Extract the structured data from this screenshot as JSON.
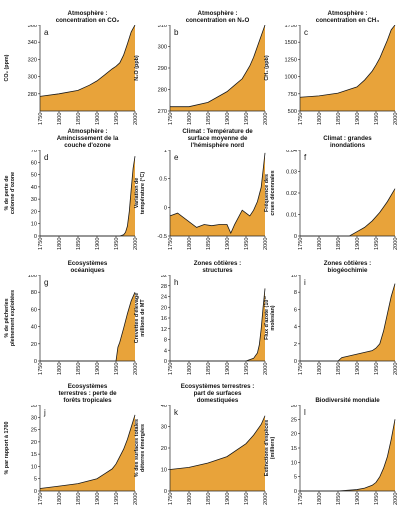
{
  "colors": {
    "fill": "#e8a33a",
    "stroke": "#1a1a1a",
    "axis": "#222222"
  },
  "chart_data": [
    {
      "type": "area",
      "letter": "a",
      "title": "Atmosphère :\nconcentration en CO₂",
      "ylabel": "CO₂ (ppm)",
      "ylim": [
        260,
        360
      ],
      "yticks": [
        280,
        300,
        320,
        340,
        360
      ],
      "xticks": [
        1750,
        1800,
        1850,
        1900,
        1950,
        2000
      ],
      "x": [
        1750,
        1800,
        1850,
        1880,
        1900,
        1920,
        1940,
        1950,
        1960,
        1970,
        1980,
        1990,
        2000
      ],
      "y": [
        277,
        280,
        284,
        290,
        295,
        302,
        309,
        312,
        316,
        325,
        338,
        352,
        368
      ]
    },
    {
      "type": "area",
      "letter": "b",
      "title": "Atmosphère :\nconcentration en N₂O",
      "ylabel": "N₂O (ppb)",
      "ylim": [
        270,
        310
      ],
      "yticks": [
        270,
        280,
        290,
        300,
        310
      ],
      "xticks": [
        1750,
        1800,
        1850,
        1900,
        1950,
        2000
      ],
      "x": [
        1750,
        1800,
        1850,
        1900,
        1920,
        1940,
        1950,
        1960,
        1970,
        1980,
        1990,
        2000
      ],
      "y": [
        272,
        272,
        274,
        279,
        282,
        285,
        288,
        291,
        295,
        300,
        305,
        312
      ]
    },
    {
      "type": "area",
      "letter": "c",
      "title": "Atmosphère :\nconcentration en CH₄",
      "ylabel": "CH₄ (ppb)",
      "ylim": [
        500,
        1750
      ],
      "yticks": [
        500,
        750,
        1000,
        1250,
        1500,
        1750
      ],
      "xticks": [
        1750,
        1800,
        1850,
        1900,
        1950,
        2000
      ],
      "x": [
        1750,
        1800,
        1850,
        1900,
        1920,
        1940,
        1950,
        1960,
        1970,
        1980,
        1990,
        2000
      ],
      "y": [
        700,
        720,
        760,
        850,
        950,
        1080,
        1170,
        1270,
        1400,
        1530,
        1680,
        1760
      ]
    },
    {
      "type": "area",
      "letter": "d",
      "title": "Atmosphère :\nAmincissement de la\ncouche d'ozone",
      "ylabel": "% de perte de\ncolonne d'ozone",
      "ylim": [
        0,
        70
      ],
      "yticks": [
        0,
        10,
        20,
        30,
        40,
        50,
        60,
        70
      ],
      "xticks": [
        1750,
        1800,
        1850,
        1900,
        1950,
        2000
      ],
      "x": [
        1750,
        1950,
        1960,
        1970,
        1975,
        1980,
        1985,
        1990,
        1995,
        2000
      ],
      "y": [
        0,
        0,
        0,
        1,
        3,
        8,
        20,
        38,
        55,
        65
      ]
    },
    {
      "type": "area",
      "letter": "e",
      "title": "Climat : Température de\nsurface moyenne de\nl'hémisphère nord",
      "ylabel": "Variation de\ntempérature (°C)",
      "ylim": [
        -0.5,
        1.0
      ],
      "yticks": [
        -0.5,
        0,
        0.5,
        1.0
      ],
      "xticks": [
        1750,
        1800,
        1850,
        1900,
        1950,
        2000
      ],
      "baseline": -0.5,
      "x": [
        1750,
        1770,
        1790,
        1810,
        1820,
        1840,
        1860,
        1880,
        1900,
        1910,
        1920,
        1940,
        1950,
        1960,
        1970,
        1980,
        1990,
        2000
      ],
      "y": [
        -0.15,
        -0.1,
        -0.2,
        -0.3,
        -0.35,
        -0.3,
        -0.32,
        -0.3,
        -0.3,
        -0.45,
        -0.3,
        -0.05,
        -0.1,
        -0.15,
        -0.05,
        0.1,
        0.35,
        0.95
      ]
    },
    {
      "type": "area",
      "letter": "f",
      "title": "Climat : grandes\ninondations",
      "ylabel": "Fréquence des\ncrues décennales",
      "ylim": [
        0,
        0.04
      ],
      "yticks": [
        0,
        0.01,
        0.02,
        0.03,
        0.04
      ],
      "xticks": [
        1750,
        1800,
        1850,
        1900,
        1950,
        2000
      ],
      "x": [
        1750,
        1880,
        1900,
        1920,
        1940,
        1960,
        1980,
        2000
      ],
      "y": [
        0,
        0,
        0.002,
        0.004,
        0.007,
        0.011,
        0.016,
        0.022
      ]
    },
    {
      "type": "area",
      "letter": "g",
      "title": "Ecosystèmes\nocéaniques",
      "ylabel": "% de pêcheries\npleinement exploitées",
      "ylim": [
        0,
        100
      ],
      "yticks": [
        0,
        20,
        40,
        60,
        80,
        100
      ],
      "xticks": [
        1750,
        1800,
        1850,
        1900,
        1950,
        2000
      ],
      "x": [
        1750,
        1950,
        1955,
        1960,
        1970,
        1980,
        1990,
        2000
      ],
      "y": [
        0,
        0,
        16,
        22,
        38,
        55,
        70,
        80
      ]
    },
    {
      "type": "area",
      "letter": "h",
      "title": "Zones côtières :\nstructures",
      "ylabel": "Crevettes d'élevage\nmillions de MT",
      "ylim": [
        0,
        32
      ],
      "yticks": [
        0,
        4,
        8,
        12,
        16,
        20,
        24,
        28,
        32
      ],
      "xticks": [
        1750,
        1800,
        1850,
        1900,
        1950,
        2000
      ],
      "x": [
        1750,
        1950,
        1960,
        1970,
        1980,
        1985,
        1990,
        1995,
        2000
      ],
      "y": [
        0,
        0,
        0.5,
        1,
        3,
        6,
        12,
        20,
        27
      ]
    },
    {
      "type": "area",
      "letter": "i",
      "title": "Zones côtières :\nbiogéochimie",
      "ylabel": "Flux d'azote (10¹²\nmoles/an)",
      "ylim": [
        0,
        10
      ],
      "yticks": [
        0,
        2,
        4,
        6,
        8,
        10
      ],
      "xticks": [
        1750,
        1800,
        1850,
        1900,
        1950,
        2000
      ],
      "x": [
        1750,
        1850,
        1860,
        1880,
        1900,
        1920,
        1940,
        1950,
        1960,
        1970,
        1980,
        1990,
        2000
      ],
      "y": [
        0,
        0,
        0.4,
        0.6,
        0.8,
        1.0,
        1.2,
        1.5,
        2.0,
        3.5,
        5.5,
        7.5,
        9.0
      ]
    },
    {
      "type": "area",
      "letter": "j",
      "title": "Ecosystèmes\nterrestres : perte de\nforêts tropicales",
      "ylabel": "% par rapport à 1700",
      "ylim": [
        0,
        35
      ],
      "yticks": [
        0,
        5,
        10,
        15,
        20,
        25,
        30,
        35
      ],
      "xticks": [
        1750,
        1800,
        1850,
        1900,
        1950,
        2000
      ],
      "x": [
        1750,
        1800,
        1850,
        1900,
        1920,
        1940,
        1950,
        1960,
        1970,
        1980,
        1990,
        2000
      ],
      "y": [
        1,
        2,
        3,
        5,
        7,
        9,
        11,
        14,
        17,
        21,
        26,
        31
      ]
    },
    {
      "type": "area",
      "letter": "k",
      "title": "Ecosystèmes terrestres :\npart de surfaces\ndomestiquées",
      "ylabel": "% des surfaces totales\ndéterres émergées",
      "ylim": [
        0,
        40
      ],
      "yticks": [
        0,
        10,
        20,
        30,
        40
      ],
      "xticks": [
        1750,
        1800,
        1850,
        1900,
        1950,
        2000
      ],
      "x": [
        1750,
        1800,
        1850,
        1900,
        1950,
        1970,
        1990,
        2000
      ],
      "y": [
        10,
        11,
        13,
        16,
        22,
        26,
        31,
        35
      ]
    },
    {
      "type": "area",
      "letter": "l",
      "title": "Biodiversité mondiale",
      "ylabel": "Extinctions d'espèces\n(milliers)",
      "ylim": [
        0,
        30
      ],
      "yticks": [
        0,
        5,
        10,
        15,
        20,
        25,
        30
      ],
      "xticks": [
        1750,
        1800,
        1850,
        1900,
        1950,
        2000
      ],
      "x": [
        1750,
        1850,
        1900,
        1920,
        1940,
        1950,
        1960,
        1970,
        1980,
        1990,
        2000
      ],
      "y": [
        0,
        0,
        0.5,
        1,
        2,
        3,
        5,
        8,
        12,
        18,
        25
      ]
    }
  ]
}
